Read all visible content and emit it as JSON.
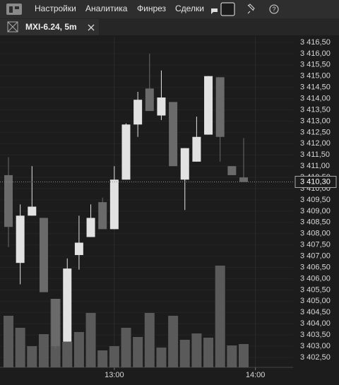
{
  "menu": [
    "Настройки",
    "Аналитика",
    "Финрез",
    "Сделки"
  ],
  "tab": {
    "title": "MXI-6.24, 5m"
  },
  "chart_data": {
    "type": "candlestick",
    "open": [
      3410.6,
      3406.7,
      3408.8,
      3408.7,
      3405.1,
      3403.2,
      3407.05,
      3407.85,
      3409.4,
      3408.2,
      3410.4,
      3412.85,
      3414.45,
      3413.25,
      3413.85,
      3410.4,
      3411.2,
      3412.4,
      3414.95,
      3411.0,
      3410.5
    ],
    "high": [
      3411.4,
      3409.3,
      3411.0,
      3408.7,
      3405.1,
      3406.9,
      3408.8,
      3409.3,
      3409.6,
      3411.0,
      3412.9,
      3414.3,
      3416.0,
      3415.25,
      3413.85,
      3411.8,
      3413.2,
      3415.0,
      3414.95,
      3411.0,
      3412.25
    ],
    "low": [
      3407.4,
      3405.75,
      3408.8,
      3405.4,
      3402.9,
      3403.2,
      3406.4,
      3407.85,
      3408.2,
      3408.2,
      3410.4,
      3412.3,
      3413.45,
      3413.05,
      3411.0,
      3409.05,
      3411.2,
      3412.4,
      3411.2,
      3410.6,
      3410.3
    ],
    "close": [
      3408.3,
      3408.8,
      3409.2,
      3405.4,
      3403.0,
      3406.45,
      3407.6,
      3408.7,
      3408.2,
      3410.4,
      3412.85,
      3413.95,
      3413.45,
      3414.05,
      3411.0,
      3411.8,
      3412.3,
      3415.0,
      3412.3,
      3410.6,
      3410.3
    ],
    "volume": [
      73,
      56,
      30,
      47,
      97,
      36,
      50,
      77,
      24,
      30,
      56,
      43,
      77,
      28,
      73,
      39,
      48,
      42,
      144,
      31,
      33
    ],
    "up_color": "#e2e2e2",
    "down_color": "#6a6a6a",
    "volume_color": "#5a5a5a",
    "ylim": [
      3402.06,
      3416.75
    ],
    "vlim": [
      0,
      150
    ],
    "last_price": {
      "value": 3410.3,
      "label": "3 410,30"
    },
    "xticks": [
      {
        "value": 9,
        "label": "13:00"
      },
      {
        "value": 21,
        "label": "14:00"
      }
    ],
    "yticks": [
      {
        "value": 3416.5,
        "label": "3 416,50"
      },
      {
        "value": 3416,
        "label": "3 416,00"
      },
      {
        "value": 3415.5,
        "label": "3 415,50"
      },
      {
        "value": 3415,
        "label": "3 415,00"
      },
      {
        "value": 3414.5,
        "label": "3 414,50"
      },
      {
        "value": 3414,
        "label": "3 414,00"
      },
      {
        "value": 3413.5,
        "label": "3 413,50"
      },
      {
        "value": 3413,
        "label": "3 413,00"
      },
      {
        "value": 3412.5,
        "label": "3 412,50"
      },
      {
        "value": 3412,
        "label": "3 412,00"
      },
      {
        "value": 3411.5,
        "label": "3 411,50"
      },
      {
        "value": 3411,
        "label": "3 411,00"
      },
      {
        "value": 3410.5,
        "label": "3 410,50"
      },
      {
        "value": 3410,
        "label": "3 410,00"
      },
      {
        "value": 3409.5,
        "label": "3 409,50"
      },
      {
        "value": 3409,
        "label": "3 409,00"
      },
      {
        "value": 3408.5,
        "label": "3 408,50"
      },
      {
        "value": 3408,
        "label": "3 408,00"
      },
      {
        "value": 3407.5,
        "label": "3 407,50"
      },
      {
        "value": 3407,
        "label": "3 407,00"
      },
      {
        "value": 3406.5,
        "label": "3 406,50"
      },
      {
        "value": 3406,
        "label": "3 406,00"
      },
      {
        "value": 3405.5,
        "label": "3 405,50"
      },
      {
        "value": 3405,
        "label": "3 405,00"
      },
      {
        "value": 3404.5,
        "label": "3 404,50"
      },
      {
        "value": 3404,
        "label": "3 404,00"
      },
      {
        "value": 3403.5,
        "label": "3 403,50"
      },
      {
        "value": 3403,
        "label": "3 403,00"
      },
      {
        "value": 3402.5,
        "label": "3 402,50"
      }
    ],
    "grid": true
  }
}
